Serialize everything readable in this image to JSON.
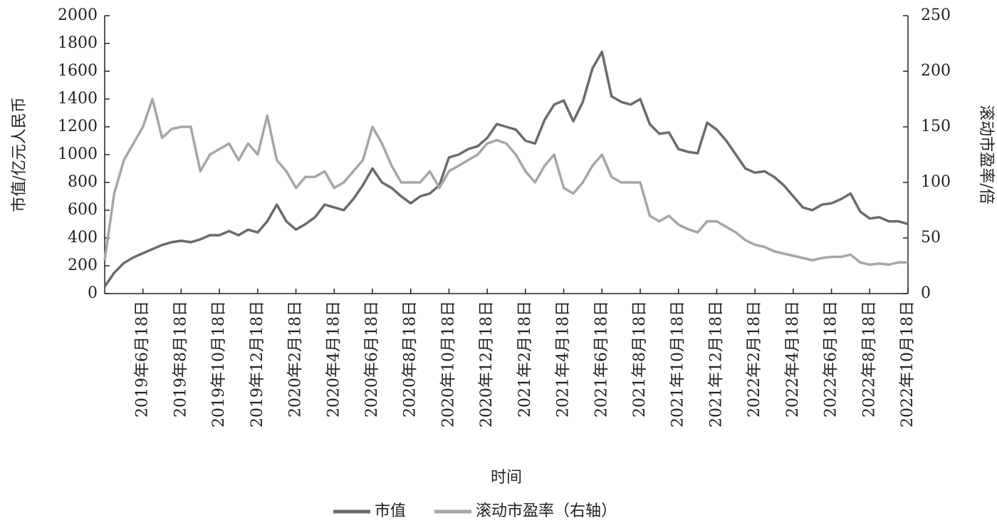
{
  "chart_data": {
    "type": "line",
    "ylabel": "市值/亿元人民币",
    "y2label": "滚动市盈率/倍",
    "xlabel": "时间",
    "categories": [
      null,
      null,
      null,
      null,
      "2019年6月18日",
      null,
      null,
      null,
      "2019年8月18日",
      null,
      null,
      null,
      "2019年10月18日",
      null,
      null,
      null,
      "2019年12月18日",
      null,
      null,
      null,
      "2020年2月18日",
      null,
      null,
      null,
      "2020年4月18日",
      null,
      null,
      null,
      "2020年6月18日",
      null,
      null,
      null,
      "2020年8月18日",
      null,
      null,
      null,
      "2020年10月18日",
      null,
      null,
      null,
      "2020年12月18日",
      null,
      null,
      null,
      "2021年2月18日",
      null,
      null,
      null,
      "2021年4月18日",
      null,
      null,
      null,
      "2021年6月18日",
      null,
      null,
      null,
      "2021年8月18日",
      null,
      null,
      null,
      "2021年10月18日",
      null,
      null,
      null,
      "2021年12月18日",
      null,
      null,
      null,
      "2022年2月18日",
      null,
      null,
      null,
      "2022年4月18日",
      null,
      null,
      null,
      "2022年6月18日",
      null,
      null,
      null,
      "2022年8月18日",
      null,
      null,
      null,
      "2022年10月18日"
    ],
    "series": [
      {
        "name": "市值",
        "color": "#6b6b6b",
        "axis": "y",
        "values": [
          50,
          150,
          220,
          260,
          290,
          320,
          350,
          370,
          380,
          370,
          390,
          420,
          420,
          450,
          420,
          460,
          440,
          520,
          640,
          520,
          460,
          500,
          550,
          640,
          620,
          600,
          680,
          780,
          900,
          800,
          760,
          700,
          650,
          700,
          720,
          780,
          980,
          1000,
          1040,
          1060,
          1120,
          1220,
          1200,
          1180,
          1100,
          1080,
          1250,
          1360,
          1390,
          1240,
          1380,
          1620,
          1740,
          1420,
          1380,
          1360,
          1400,
          1220,
          1150,
          1160,
          1040,
          1020,
          1010,
          1230,
          1180,
          1100,
          1000,
          900,
          870,
          880,
          840,
          780,
          700,
          620,
          600,
          640,
          650,
          680,
          720,
          590,
          540,
          550,
          520,
          520,
          500
        ]
      },
      {
        "name": "滚动市盈率（右轴）",
        "color": "#a6a6a6",
        "axis": "y2",
        "values": [
          30,
          90,
          120,
          135,
          150,
          175,
          140,
          148,
          150,
          150,
          110,
          125,
          130,
          135,
          120,
          135,
          125,
          160,
          120,
          110,
          95,
          105,
          105,
          110,
          95,
          100,
          110,
          120,
          150,
          135,
          115,
          100,
          100,
          100,
          110,
          95,
          110,
          115,
          120,
          125,
          135,
          138,
          135,
          125,
          110,
          100,
          115,
          125,
          95,
          90,
          100,
          115,
          125,
          105,
          100,
          100,
          100,
          70,
          65,
          70,
          62,
          58,
          55,
          65,
          65,
          60,
          55,
          48,
          44,
          42,
          38,
          36,
          34,
          32,
          30,
          32,
          33,
          33,
          35,
          28,
          26,
          27,
          26,
          28,
          28
        ]
      }
    ],
    "ylim": [
      0,
      2000
    ],
    "yticks": [
      0,
      200,
      400,
      600,
      800,
      1000,
      1200,
      1400,
      1600,
      1800,
      2000
    ],
    "y2lim": [
      0,
      250
    ],
    "y2ticks": [
      0,
      50,
      100,
      150,
      200,
      250
    ],
    "legend": "bottom"
  }
}
